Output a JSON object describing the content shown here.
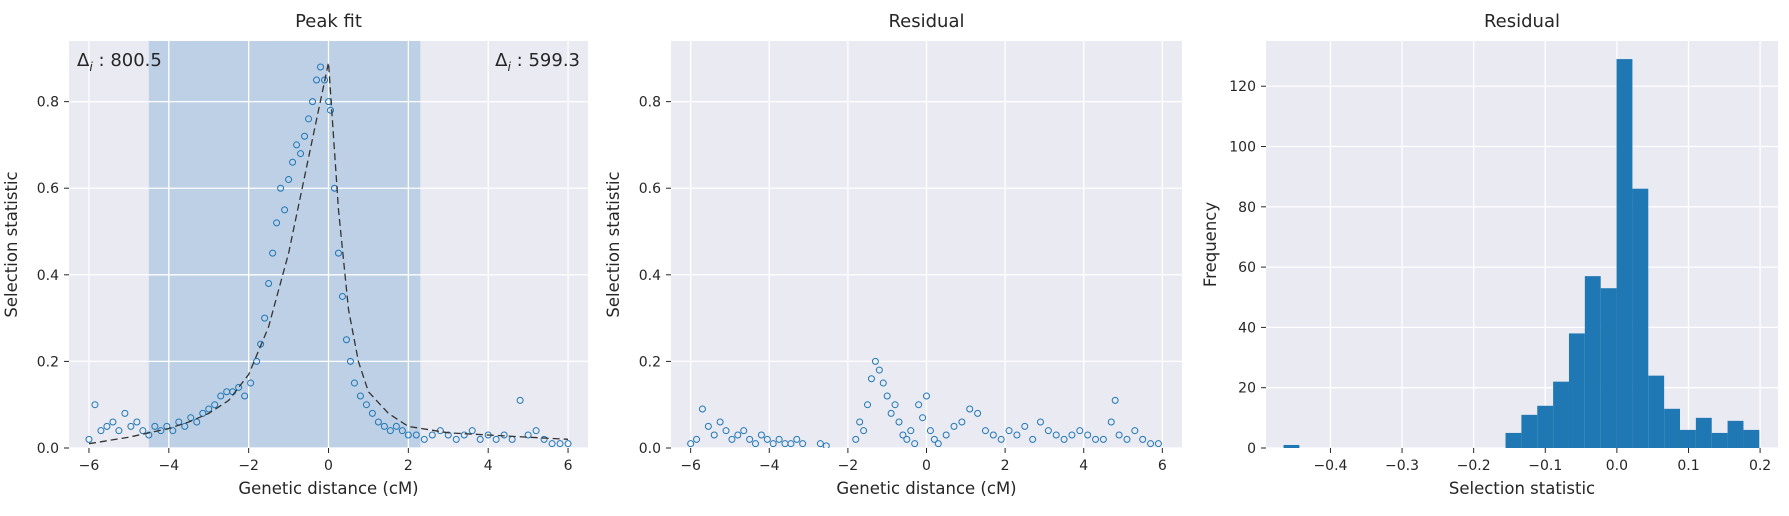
{
  "chart_data": [
    {
      "type": "scatter",
      "title": "Peak fit",
      "xlabel": "Genetic distance (cM)",
      "ylabel": "Selection statistic",
      "xlim": [
        -6.5,
        6.5
      ],
      "ylim": [
        0.0,
        0.94
      ],
      "xticks": [
        -6,
        -4,
        -2,
        0,
        2,
        4,
        6
      ],
      "yticks": [
        0.0,
        0.2,
        0.4,
        0.6,
        0.8
      ],
      "xtick_labels": [
        "−6",
        "−4",
        "−2",
        "0",
        "2",
        "4",
        "6"
      ],
      "ytick_labels": [
        "0.0",
        "0.2",
        "0.4",
        "0.6",
        "0.8"
      ],
      "grid": true,
      "shaded_region": {
        "x_from": -4.5,
        "x_to": 2.3
      },
      "annotations": [
        {
          "symbol": "Δ",
          "subscript": "i",
          "text": " : 800.5",
          "position": "top-left"
        },
        {
          "symbol": "Δ",
          "subscript": "i",
          "text": " : 599.3",
          "position": "top-right"
        }
      ],
      "series": [
        {
          "kind": "observed-points",
          "marker": "hollow-circle",
          "x": [
            -6.0,
            -5.85,
            -5.7,
            -5.55,
            -5.4,
            -5.25,
            -5.1,
            -4.95,
            -4.8,
            -4.65,
            -4.5,
            -4.35,
            -4.2,
            -4.05,
            -3.9,
            -3.75,
            -3.6,
            -3.45,
            -3.3,
            -3.15,
            -3.0,
            -2.85,
            -2.7,
            -2.55,
            -2.4,
            -2.25,
            -2.1,
            -1.95,
            -1.8,
            -1.7,
            -1.6,
            -1.5,
            -1.4,
            -1.3,
            -1.2,
            -1.1,
            -1.0,
            -0.9,
            -0.8,
            -0.7,
            -0.6,
            -0.5,
            -0.4,
            -0.3,
            -0.2,
            -0.1,
            0.0,
            0.05,
            0.15,
            0.25,
            0.35,
            0.45,
            0.55,
            0.65,
            0.8,
            0.95,
            1.1,
            1.25,
            1.4,
            1.55,
            1.7,
            1.85,
            2.0,
            2.2,
            2.4,
            2.6,
            2.8,
            3.0,
            3.2,
            3.4,
            3.6,
            3.8,
            4.0,
            4.2,
            4.4,
            4.6,
            4.8,
            5.0,
            5.2,
            5.4,
            5.6,
            5.8,
            6.0
          ],
          "y": [
            0.02,
            0.1,
            0.04,
            0.05,
            0.06,
            0.04,
            0.08,
            0.05,
            0.06,
            0.04,
            0.03,
            0.05,
            0.04,
            0.05,
            0.04,
            0.06,
            0.05,
            0.07,
            0.06,
            0.08,
            0.09,
            0.1,
            0.12,
            0.13,
            0.13,
            0.14,
            0.12,
            0.15,
            0.2,
            0.24,
            0.3,
            0.38,
            0.45,
            0.52,
            0.6,
            0.55,
            0.62,
            0.66,
            0.7,
            0.68,
            0.72,
            0.76,
            0.8,
            0.85,
            0.88,
            0.85,
            0.8,
            0.78,
            0.6,
            0.45,
            0.35,
            0.25,
            0.2,
            0.15,
            0.12,
            0.1,
            0.08,
            0.06,
            0.05,
            0.04,
            0.05,
            0.04,
            0.03,
            0.03,
            0.02,
            0.03,
            0.04,
            0.03,
            0.02,
            0.03,
            0.04,
            0.02,
            0.03,
            0.02,
            0.03,
            0.02,
            0.11,
            0.03,
            0.04,
            0.02,
            0.01,
            0.01,
            0.01
          ]
        },
        {
          "kind": "fitted-curve",
          "line": "dashed",
          "x": [
            -6.0,
            -5.0,
            -4.0,
            -3.5,
            -3.0,
            -2.5,
            -2.0,
            -1.5,
            -1.0,
            -0.5,
            -0.25,
            0.0,
            0.25,
            0.5,
            0.75,
            1.0,
            1.5,
            2.0,
            3.0,
            4.0,
            5.0,
            6.0
          ],
          "y": [
            0.01,
            0.025,
            0.045,
            0.06,
            0.08,
            0.11,
            0.17,
            0.28,
            0.45,
            0.67,
            0.78,
            0.89,
            0.55,
            0.32,
            0.2,
            0.13,
            0.08,
            0.05,
            0.035,
            0.03,
            0.025,
            0.02
          ]
        }
      ]
    },
    {
      "type": "scatter",
      "title": "Residual",
      "xlabel": "Genetic distance (cM)",
      "ylabel": "Selection statistic",
      "xlim": [
        -6.5,
        6.5
      ],
      "ylim": [
        0.0,
        0.94
      ],
      "xticks": [
        -6,
        -4,
        -2,
        0,
        2,
        4,
        6
      ],
      "yticks": [
        0.0,
        0.2,
        0.4,
        0.6,
        0.8
      ],
      "xtick_labels": [
        "−6",
        "−4",
        "−2",
        "0",
        "2",
        "4",
        "6"
      ],
      "ytick_labels": [
        "0.0",
        "0.2",
        "0.4",
        "0.6",
        "0.8"
      ],
      "grid": true,
      "series": [
        {
          "kind": "residual-points",
          "marker": "hollow-circle",
          "x": [
            -6.0,
            -5.85,
            -5.7,
            -5.55,
            -5.4,
            -5.25,
            -5.1,
            -4.95,
            -4.8,
            -4.65,
            -4.5,
            -4.35,
            -4.2,
            -4.05,
            -3.9,
            -3.75,
            -3.6,
            -3.45,
            -3.3,
            -3.15,
            -2.7,
            -2.55,
            -1.8,
            -1.7,
            -1.6,
            -1.5,
            -1.4,
            -1.3,
            -1.2,
            -1.1,
            -1.0,
            -0.9,
            -0.8,
            -0.7,
            -0.6,
            -0.5,
            -0.4,
            -0.3,
            -0.2,
            -0.1,
            0.0,
            0.1,
            0.2,
            0.3,
            0.5,
            0.7,
            0.9,
            1.1,
            1.3,
            1.5,
            1.7,
            1.9,
            2.1,
            2.3,
            2.5,
            2.7,
            2.9,
            3.1,
            3.3,
            3.5,
            3.7,
            3.9,
            4.1,
            4.3,
            4.5,
            4.7,
            4.8,
            4.9,
            5.1,
            5.3,
            5.5,
            5.7,
            5.9
          ],
          "y": [
            0.01,
            0.02,
            0.09,
            0.05,
            0.03,
            0.06,
            0.04,
            0.02,
            0.03,
            0.04,
            0.02,
            0.01,
            0.03,
            0.02,
            0.01,
            0.02,
            0.01,
            0.01,
            0.02,
            0.01,
            0.01,
            0.005,
            0.02,
            0.06,
            0.04,
            0.1,
            0.16,
            0.2,
            0.18,
            0.15,
            0.12,
            0.08,
            0.1,
            0.06,
            0.03,
            0.02,
            0.04,
            0.01,
            0.1,
            0.07,
            0.12,
            0.04,
            0.02,
            0.01,
            0.03,
            0.05,
            0.06,
            0.09,
            0.08,
            0.04,
            0.03,
            0.02,
            0.04,
            0.03,
            0.05,
            0.02,
            0.06,
            0.04,
            0.03,
            0.02,
            0.03,
            0.04,
            0.03,
            0.02,
            0.02,
            0.06,
            0.11,
            0.03,
            0.02,
            0.04,
            0.02,
            0.01,
            0.01
          ]
        }
      ]
    },
    {
      "type": "bar",
      "title": "Residual",
      "xlabel": "Selection statistic",
      "ylabel": "Frequency",
      "xlim": [
        -0.49,
        0.225
      ],
      "ylim": [
        0,
        135
      ],
      "xticks": [
        -0.4,
        -0.3,
        -0.2,
        -0.1,
        0.0,
        0.1,
        0.2
      ],
      "yticks": [
        0,
        20,
        40,
        60,
        80,
        100,
        120
      ],
      "xtick_labels": [
        "−0.4",
        "−0.3",
        "−0.2",
        "−0.1",
        "0.0",
        "0.1",
        "0.2"
      ],
      "ytick_labels": [
        "0",
        "20",
        "40",
        "60",
        "80",
        "100",
        "120"
      ],
      "grid": true,
      "bin_width": 0.02215,
      "bins_start": [
        -0.4655,
        -0.1555,
        -0.13335,
        -0.1112,
        -0.08905,
        -0.0669,
        -0.04475,
        -0.0226,
        -0.00045,
        0.0217,
        0.04385,
        0.066,
        0.08815,
        0.1103,
        0.13245,
        0.1546,
        0.17675
      ],
      "values": [
        1,
        5,
        11,
        14,
        22,
        38,
        57,
        53,
        129,
        86,
        24,
        13,
        6,
        10,
        5,
        9,
        6
      ]
    }
  ]
}
